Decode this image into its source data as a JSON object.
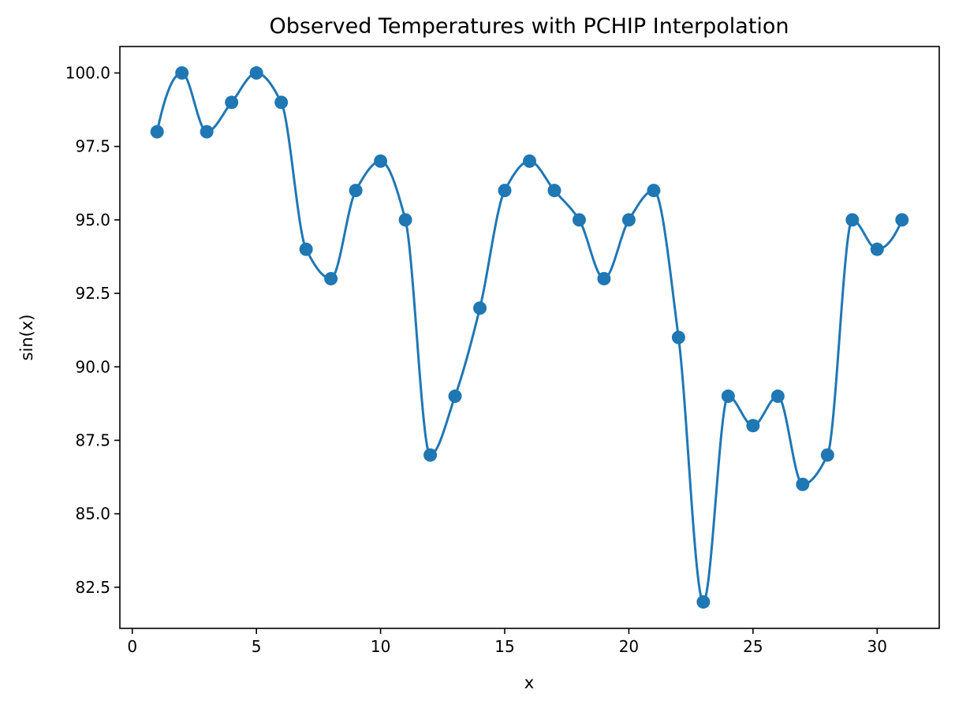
{
  "chart_data": {
    "type": "line",
    "title": "Observed Temperatures with PCHIP Interpolation",
    "xlabel": "x",
    "ylabel": "sin(x)",
    "xlim": [
      -0.5,
      32.5
    ],
    "ylim": [
      81.1,
      100.9
    ],
    "x_ticks": [
      0,
      5,
      10,
      15,
      20,
      25,
      30
    ],
    "x_tick_labels": [
      "0",
      "5",
      "10",
      "15",
      "20",
      "25",
      "30"
    ],
    "y_ticks": [
      82.5,
      85.0,
      87.5,
      90.0,
      92.5,
      95.0,
      97.5,
      100.0
    ],
    "y_tick_labels": [
      "82.5",
      "85.0",
      "87.5",
      "90.0",
      "92.5",
      "95.0",
      "97.5",
      "100.0"
    ],
    "grid": false,
    "series": [
      {
        "color": "#1f77b4",
        "marker": "circle",
        "interpolation": "smooth curve through points",
        "x": [
          1,
          2,
          3,
          4,
          5,
          6,
          7,
          8,
          9,
          10,
          11,
          12,
          13,
          14,
          15,
          16,
          17,
          18,
          19,
          20,
          21,
          22,
          23,
          24,
          25,
          26,
          27,
          28,
          29,
          30,
          31
        ],
        "y": [
          98,
          100,
          98,
          99,
          100,
          99,
          94,
          93,
          96,
          97,
          95,
          87,
          89,
          92,
          96,
          97,
          96,
          95,
          93,
          95,
          96,
          91,
          82,
          89,
          88,
          89,
          86,
          87,
          95,
          94,
          95
        ]
      }
    ]
  }
}
